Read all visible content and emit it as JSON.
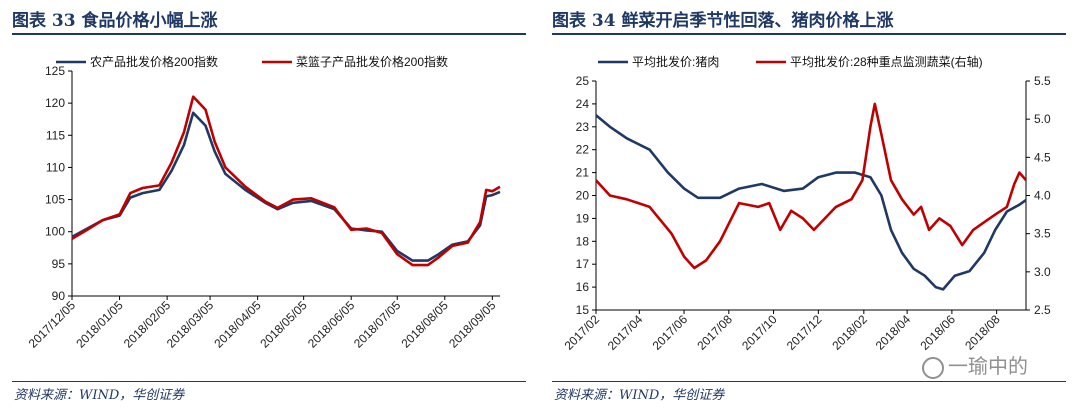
{
  "left": {
    "title": "图表 33   食品价格小幅上涨",
    "source": "资料来源：WIND，华创证券"
  },
  "right": {
    "title": "图表 34   鲜菜开启季节性回落、猪肉价格上涨",
    "source": "资料来源：WIND，华创证券"
  },
  "watermark": "一瑜中的",
  "colors": {
    "navy": "#1f3864",
    "red": "#c00000",
    "axis": "#000000"
  },
  "chart_data": [
    {
      "type": "line",
      "title": "",
      "ylim": [
        90,
        125
      ],
      "yticks": [
        "90",
        "95",
        "100",
        "105",
        "110",
        "115",
        "120",
        "125"
      ],
      "xticks": [
        "2017/12/05",
        "2018/01/05",
        "2018/02/05",
        "2018/03/05",
        "2018/04/05",
        "2018/05/05",
        "2018/06/05",
        "2018/07/05",
        "2018/08/05",
        "2018/09/05"
      ],
      "x_range": [
        "2017-12-05",
        "2018-09-10"
      ],
      "series": [
        {
          "name": "农产品批发价格200指数",
          "color": "#1f3864",
          "points": [
            [
              "2017-12-05",
              99.2
            ],
            [
              "2017-12-15",
              100.5
            ],
            [
              "2017-12-25",
              101.8
            ],
            [
              "2018-01-05",
              102.5
            ],
            [
              "2018-01-12",
              105.3
            ],
            [
              "2018-01-20",
              106.0
            ],
            [
              "2018-01-31",
              106.5
            ],
            [
              "2018-02-08",
              109.5
            ],
            [
              "2018-02-16",
              113.5
            ],
            [
              "2018-02-22",
              118.5
            ],
            [
              "2018-03-02",
              116.5
            ],
            [
              "2018-03-08",
              112.5
            ],
            [
              "2018-03-15",
              109.0
            ],
            [
              "2018-03-28",
              106.5
            ],
            [
              "2018-04-10",
              104.5
            ],
            [
              "2018-04-18",
              103.5
            ],
            [
              "2018-04-28",
              104.5
            ],
            [
              "2018-05-10",
              104.8
            ],
            [
              "2018-05-25",
              103.5
            ],
            [
              "2018-06-05",
              100.5
            ],
            [
              "2018-06-15",
              100.2
            ],
            [
              "2018-06-25",
              100.0
            ],
            [
              "2018-07-05",
              97.0
            ],
            [
              "2018-07-15",
              95.5
            ],
            [
              "2018-07-25",
              95.5
            ],
            [
              "2018-08-01",
              96.5
            ],
            [
              "2018-08-10",
              98.0
            ],
            [
              "2018-08-20",
              98.5
            ],
            [
              "2018-08-28",
              101.0
            ],
            [
              "2018-09-01",
              105.5
            ],
            [
              "2018-09-05",
              105.7
            ],
            [
              "2018-09-10",
              106.2
            ]
          ]
        },
        {
          "name": "菜篮子产品批发价格200指数",
          "color": "#c00000",
          "points": [
            [
              "2017-12-05",
              98.9
            ],
            [
              "2017-12-15",
              100.3
            ],
            [
              "2017-12-25",
              101.8
            ],
            [
              "2018-01-05",
              102.7
            ],
            [
              "2018-01-12",
              106.0
            ],
            [
              "2018-01-20",
              106.8
            ],
            [
              "2018-01-31",
              107.2
            ],
            [
              "2018-02-08",
              110.8
            ],
            [
              "2018-02-16",
              115.5
            ],
            [
              "2018-02-22",
              121.0
            ],
            [
              "2018-03-02",
              119.0
            ],
            [
              "2018-03-08",
              114.0
            ],
            [
              "2018-03-15",
              110.0
            ],
            [
              "2018-03-28",
              107.0
            ],
            [
              "2018-04-10",
              104.7
            ],
            [
              "2018-04-18",
              103.7
            ],
            [
              "2018-04-28",
              105.0
            ],
            [
              "2018-05-10",
              105.2
            ],
            [
              "2018-05-25",
              103.8
            ],
            [
              "2018-06-05",
              100.3
            ],
            [
              "2018-06-15",
              100.5
            ],
            [
              "2018-06-25",
              99.8
            ],
            [
              "2018-07-05",
              96.5
            ],
            [
              "2018-07-15",
              94.8
            ],
            [
              "2018-07-25",
              94.8
            ],
            [
              "2018-08-01",
              96.0
            ],
            [
              "2018-08-10",
              97.8
            ],
            [
              "2018-08-20",
              98.3
            ],
            [
              "2018-08-28",
              101.5
            ],
            [
              "2018-09-01",
              106.5
            ],
            [
              "2018-09-05",
              106.3
            ],
            [
              "2018-09-10",
              107.0
            ]
          ]
        }
      ]
    },
    {
      "type": "line",
      "title": "",
      "ylim": [
        15,
        25
      ],
      "y2lim": [
        2.5,
        5.5
      ],
      "yticks": [
        "15",
        "16",
        "17",
        "18",
        "19",
        "20",
        "21",
        "22",
        "23",
        "24",
        "25"
      ],
      "y2ticks": [
        "2.5",
        "3.0",
        "3.5",
        "4.0",
        "4.5",
        "5.0",
        "5.5"
      ],
      "xticks": [
        "2017/02",
        "2017/04",
        "2017/06",
        "2017/08",
        "2017/10",
        "2017/12",
        "2018/02",
        "2018/04",
        "2018/06",
        "2018/08"
      ],
      "x_range": [
        "2017-02-01",
        "2018-09-10"
      ],
      "series": [
        {
          "name": "平均批发价:猪肉",
          "axis": "left",
          "color": "#1f3864",
          "points": [
            [
              "2017-02-01",
              23.5
            ],
            [
              "2017-02-20",
              23.0
            ],
            [
              "2017-03-15",
              22.5
            ],
            [
              "2017-04-15",
              22.0
            ],
            [
              "2017-05-10",
              21.0
            ],
            [
              "2017-06-01",
              20.3
            ],
            [
              "2017-06-20",
              19.9
            ],
            [
              "2017-07-20",
              19.9
            ],
            [
              "2017-08-15",
              20.3
            ],
            [
              "2017-09-15",
              20.5
            ],
            [
              "2017-10-15",
              20.2
            ],
            [
              "2017-11-10",
              20.3
            ],
            [
              "2017-12-01",
              20.8
            ],
            [
              "2017-12-25",
              21.0
            ],
            [
              "2018-01-20",
              21.0
            ],
            [
              "2018-02-10",
              20.8
            ],
            [
              "2018-02-25",
              20.0
            ],
            [
              "2018-03-10",
              18.5
            ],
            [
              "2018-03-25",
              17.5
            ],
            [
              "2018-04-10",
              16.8
            ],
            [
              "2018-04-25",
              16.5
            ],
            [
              "2018-05-10",
              16.0
            ],
            [
              "2018-05-20",
              15.9
            ],
            [
              "2018-06-05",
              16.5
            ],
            [
              "2018-06-25",
              16.7
            ],
            [
              "2018-07-15",
              17.5
            ],
            [
              "2018-07-30",
              18.5
            ],
            [
              "2018-08-15",
              19.3
            ],
            [
              "2018-09-01",
              19.6
            ],
            [
              "2018-09-10",
              19.8
            ]
          ]
        },
        {
          "name": "平均批发价:28种重点监测蔬菜(右轴)",
          "axis": "right",
          "color": "#c00000",
          "points": [
            [
              "2017-02-01",
              4.2
            ],
            [
              "2017-02-20",
              4.0
            ],
            [
              "2017-03-15",
              3.95
            ],
            [
              "2017-04-15",
              3.85
            ],
            [
              "2017-05-15",
              3.5
            ],
            [
              "2017-06-01",
              3.2
            ],
            [
              "2017-06-15",
              3.05
            ],
            [
              "2017-07-01",
              3.15
            ],
            [
              "2017-07-20",
              3.4
            ],
            [
              "2017-08-15",
              3.9
            ],
            [
              "2017-09-10",
              3.85
            ],
            [
              "2017-09-25",
              3.9
            ],
            [
              "2017-10-10",
              3.55
            ],
            [
              "2017-10-25",
              3.8
            ],
            [
              "2017-11-10",
              3.7
            ],
            [
              "2017-11-25",
              3.55
            ],
            [
              "2017-12-10",
              3.7
            ],
            [
              "2017-12-25",
              3.85
            ],
            [
              "2018-01-15",
              3.95
            ],
            [
              "2018-01-30",
              4.2
            ],
            [
              "2018-02-10",
              4.9
            ],
            [
              "2018-02-16",
              5.2
            ],
            [
              "2018-02-25",
              4.8
            ],
            [
              "2018-03-10",
              4.2
            ],
            [
              "2018-03-25",
              3.95
            ],
            [
              "2018-04-10",
              3.75
            ],
            [
              "2018-04-20",
              3.85
            ],
            [
              "2018-05-01",
              3.55
            ],
            [
              "2018-05-15",
              3.7
            ],
            [
              "2018-05-30",
              3.6
            ],
            [
              "2018-06-15",
              3.35
            ],
            [
              "2018-06-30",
              3.55
            ],
            [
              "2018-07-15",
              3.65
            ],
            [
              "2018-07-30",
              3.75
            ],
            [
              "2018-08-15",
              3.85
            ],
            [
              "2018-08-25",
              4.15
            ],
            [
              "2018-09-01",
              4.3
            ],
            [
              "2018-09-10",
              4.2
            ]
          ]
        }
      ]
    }
  ]
}
